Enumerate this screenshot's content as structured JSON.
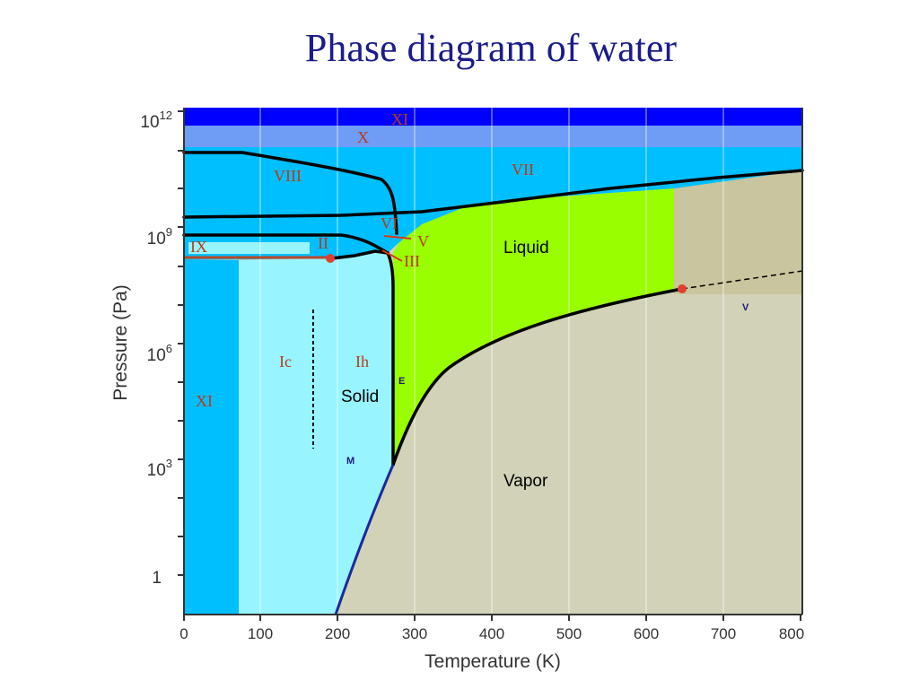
{
  "title": "Phase diagram of water",
  "axes": {
    "xlabel": "Temperature (K)",
    "ylabel": "Pressure (Pa)",
    "x_ticks": [
      "0",
      "100",
      "200",
      "300",
      "400",
      "500",
      "600",
      "700",
      "800"
    ],
    "y_ticks": [
      {
        "base": "10",
        "exp": "12"
      },
      {
        "base": "10",
        "exp": "9"
      },
      {
        "base": "10",
        "exp": "6"
      },
      {
        "base": "10",
        "exp": "3"
      },
      {
        "base": "1",
        "exp": ""
      }
    ]
  },
  "regions": {
    "ice_xi_high": "XI",
    "ice_x": "X",
    "ice_viii": "VIII",
    "ice_vii": "VII",
    "ice_vi": "VI",
    "ice_v": "V",
    "ice_iii": "III",
    "ice_ix": "IX",
    "ice_ii": "II",
    "ice_ic": "Ic",
    "ice_ih": "Ih",
    "ice_xi_low": "XI",
    "solid": "Solid",
    "liquid": "Liquid",
    "vapor": "Vapor"
  },
  "markers": {
    "e": "E",
    "m": "M",
    "v": "V"
  },
  "colors": {
    "ice_xi_top": "#0000ff",
    "ice_x": "#6f9cf5",
    "ice_high": "#00bfff",
    "ice_low": "#98f5ff",
    "liquid": "#99ff00",
    "vapor": "#d2d2b8",
    "supercritical": "#c9c59e",
    "roman_label": "#b83a1a",
    "point": "#e04030"
  }
}
